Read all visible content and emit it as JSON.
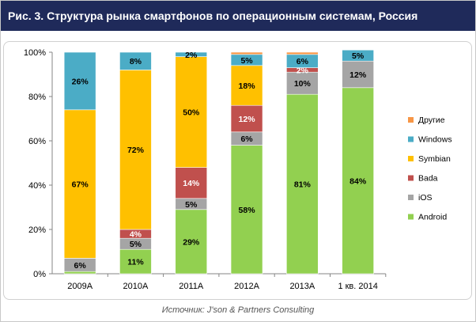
{
  "title": "Рис. 3. Структура рынка смартфонов по операционным системам, Россия",
  "source": "Источник: J'son & Partners Consulting",
  "colors": {
    "title_bg": "#1f2a5a",
    "Android": "#92d050",
    "iOS": "#a5a5a5",
    "Bada": "#c0504d",
    "Symbian": "#ffc000",
    "Windows": "#4bacc6",
    "Другие": "#f79646"
  },
  "chart_data": {
    "type": "bar",
    "stacked": true,
    "categories": [
      "2009А",
      "2010А",
      "2011А",
      "2012А",
      "2013А",
      "1 кв. 2014"
    ],
    "yticks": [
      "0%",
      "20%",
      "40%",
      "60%",
      "80%",
      "100%"
    ],
    "ylim": [
      0,
      100
    ],
    "legend_position": "right",
    "series": [
      {
        "name": "Android",
        "values": [
          1,
          11,
          29,
          58,
          81,
          84
        ],
        "labels": [
          "",
          "11%",
          "29%",
          "58%",
          "81%",
          "84%"
        ]
      },
      {
        "name": "iOS",
        "values": [
          6,
          5,
          5,
          6,
          10,
          12
        ],
        "labels": [
          "6%",
          "5%",
          "5%",
          "6%",
          "10%",
          "12%"
        ]
      },
      {
        "name": "Bada",
        "values": [
          0,
          4,
          14,
          12,
          2,
          0
        ],
        "labels": [
          "",
          "4%",
          "14%",
          "12%",
          "2%",
          ""
        ]
      },
      {
        "name": "Symbian",
        "values": [
          67,
          72,
          50,
          18,
          0,
          0
        ],
        "labels": [
          "67%",
          "72%",
          "50%",
          "18%",
          "",
          ""
        ]
      },
      {
        "name": "Windows",
        "values": [
          26,
          8,
          2,
          5,
          6,
          5
        ],
        "labels": [
          "26%",
          "8%",
          "2%",
          "5%",
          "6%",
          "5%"
        ]
      },
      {
        "name": "Другие",
        "values": [
          0,
          0,
          0,
          1,
          1,
          0
        ],
        "labels": [
          "",
          "",
          "",
          "",
          "",
          ""
        ]
      }
    ],
    "legend_order": [
      "Другие",
      "Windows",
      "Symbian",
      "Bada",
      "iOS",
      "Android"
    ]
  }
}
